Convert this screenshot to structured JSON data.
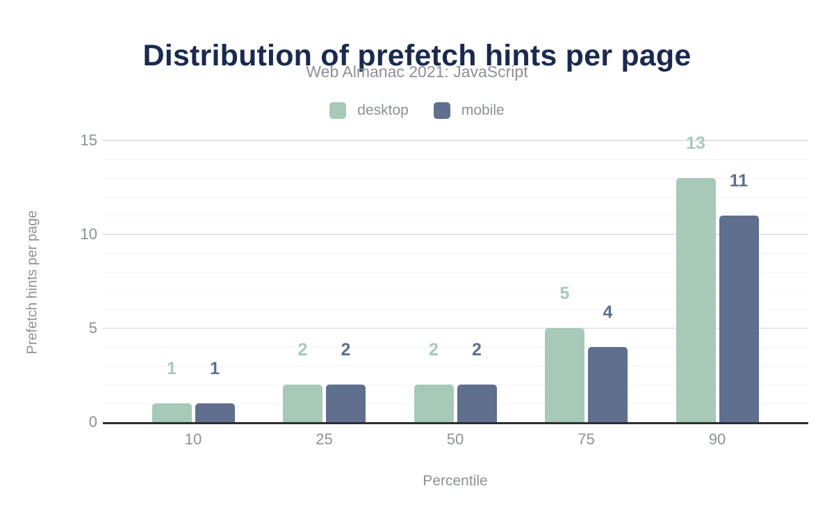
{
  "chart_data": {
    "type": "bar",
    "title": "Distribution of prefetch hints per page",
    "subtitle": "Web Almanac 2021: JavaScript",
    "xlabel": "Percentile",
    "ylabel": "Prefetch hints per page",
    "categories": [
      "10",
      "25",
      "50",
      "75",
      "90"
    ],
    "series": [
      {
        "name": "desktop",
        "color": "#a6c9b8",
        "values": [
          1,
          2,
          2,
          5,
          13
        ]
      },
      {
        "name": "mobile",
        "color": "#5f6f8d",
        "values": [
          1,
          2,
          2,
          4,
          11
        ]
      }
    ],
    "ylim": [
      0,
      15
    ],
    "yticks": [
      0,
      5,
      10,
      15
    ],
    "legend_position": "top",
    "grid": "horizontal: minor every 1, major every 5",
    "data_labels": true
  },
  "colors": {
    "title": "#1a2a4f",
    "muted_text": "#8d9095",
    "axis_line": "#2e2e2e",
    "gridline_minor": "#f3f3f5",
    "gridline_major": "#e4e4e7"
  }
}
